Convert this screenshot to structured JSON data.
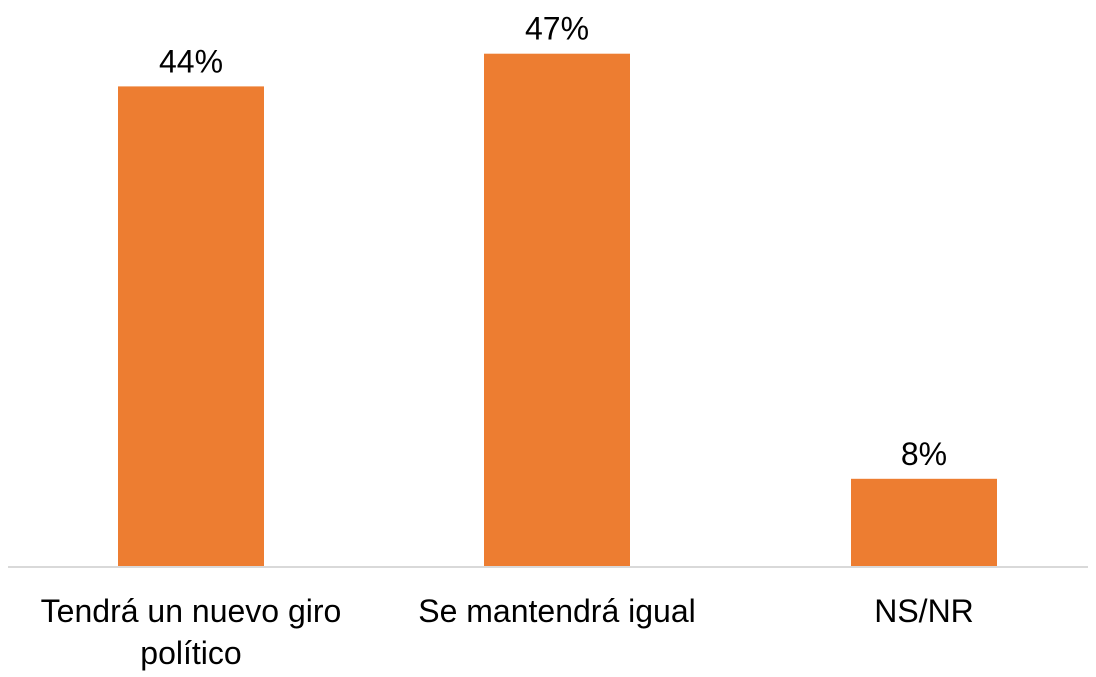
{
  "chart_data": {
    "type": "bar",
    "categories": [
      "Tendrá un nuevo giro político",
      "Se mantendrá igual",
      "NS/NR"
    ],
    "category_lines": [
      [
        "Tendrá un nuevo giro",
        "político"
      ],
      [
        "Se mantendrá igual"
      ],
      [
        "NS/NR"
      ]
    ],
    "values": [
      44,
      47,
      8
    ],
    "data_labels": [
      "44%",
      "47%",
      "8%"
    ],
    "title": "",
    "xlabel": "",
    "ylabel": "",
    "ylim": [
      0,
      50
    ],
    "grid": false,
    "legend": "none",
    "colors": {
      "bar": "#ED7D31",
      "axis": "#D9D9D9",
      "text": "#000000"
    }
  }
}
